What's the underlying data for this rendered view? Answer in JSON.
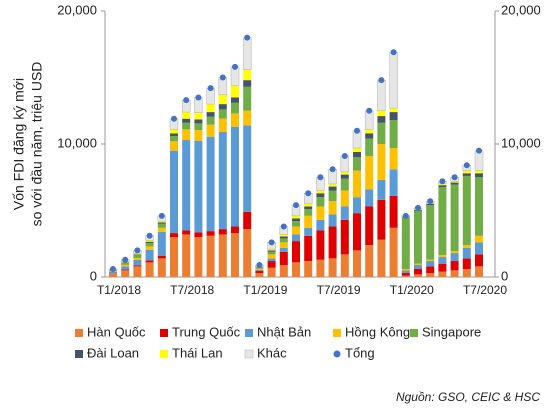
{
  "chart_data": {
    "type": "bar",
    "stacked": true,
    "y_label": [
      "Vốn FDI đăng ký mới",
      "so với đầu năm, triệu USD"
    ],
    "source": "Nguồn: GSO, CEIC & HSC",
    "categories": [
      "T1/2018",
      null,
      null,
      null,
      null,
      null,
      "T7/2018",
      null,
      null,
      null,
      null,
      null,
      "T1/2019",
      null,
      null,
      null,
      null,
      null,
      "T7/2019",
      null,
      null,
      null,
      null,
      null,
      "T1/2020",
      null,
      null,
      null,
      null,
      null,
      "T7/2020"
    ],
    "ylim": [
      0,
      20000
    ],
    "yticks": [
      0,
      {
        "value": 10000,
        "label": "10,000"
      },
      {
        "value": 20000,
        "label": "20,000"
      }
    ],
    "y2lim": [
      0,
      20000
    ],
    "y2ticks": [
      0,
      {
        "value": 10000,
        "label": "10,000"
      },
      {
        "value": 20000,
        "label": "20,000"
      }
    ],
    "series": [
      {
        "name": "Hàn Quốc",
        "color": "#ed7d31",
        "values": [
          250,
          500,
          800,
          1100,
          1400,
          3000,
          3200,
          3000,
          3100,
          3200,
          3300,
          3600,
          300,
          700,
          900,
          1100,
          1200,
          1300,
          1400,
          1700,
          2000,
          2400,
          2800,
          3700,
          100,
          200,
          300,
          400,
          500,
          600,
          800
        ]
      },
      {
        "name": "Trung Quốc",
        "color": "#e00000",
        "values": [
          30,
          60,
          80,
          150,
          200,
          300,
          300,
          350,
          350,
          400,
          500,
          1300,
          150,
          500,
          1000,
          1600,
          1900,
          2200,
          2400,
          2600,
          2800,
          2900,
          3000,
          2400,
          200,
          400,
          500,
          600,
          700,
          800,
          900
        ]
      },
      {
        "name": "Nhật Bản",
        "color": "#5b9bd5",
        "values": [
          100,
          250,
          400,
          800,
          1800,
          6200,
          6800,
          6900,
          7100,
          7300,
          7500,
          6500,
          100,
          200,
          300,
          500,
          600,
          800,
          900,
          1000,
          1200,
          1300,
          1500,
          2000,
          200,
          300,
          400,
          500,
          600,
          800,
          900
        ]
      },
      {
        "name": "Hồng Kông",
        "color": "#ffc000",
        "values": [
          50,
          100,
          150,
          250,
          300,
          700,
          800,
          800,
          900,
          1000,
          1000,
          1100,
          80,
          300,
          400,
          600,
          900,
          1000,
          1000,
          1200,
          2000,
          2500,
          2700,
          1600,
          100,
          100,
          100,
          150,
          150,
          200,
          500
        ]
      },
      {
        "name": "Singapore",
        "color": "#70ad47",
        "values": [
          60,
          150,
          200,
          250,
          300,
          400,
          500,
          500,
          600,
          700,
          800,
          1800,
          70,
          200,
          300,
          400,
          500,
          700,
          800,
          900,
          1000,
          1300,
          1600,
          2100,
          3900,
          4000,
          4100,
          5100,
          5000,
          5200,
          4400
        ]
      },
      {
        "name": "Đài Loan",
        "color": "#44546a",
        "values": [
          20,
          40,
          60,
          100,
          100,
          200,
          300,
          300,
          350,
          400,
          400,
          500,
          40,
          100,
          150,
          200,
          200,
          300,
          300,
          300,
          400,
          400,
          500,
          600,
          30,
          50,
          100,
          150,
          150,
          200,
          300
        ]
      },
      {
        "name": "Thái Lan",
        "color": "#ffff00",
        "values": [
          20,
          50,
          80,
          100,
          100,
          300,
          500,
          500,
          600,
          700,
          900,
          800,
          30,
          100,
          150,
          200,
          200,
          200,
          200,
          200,
          300,
          300,
          400,
          300,
          20,
          50,
          50,
          100,
          100,
          200,
          200
        ]
      },
      {
        "name": "Khác",
        "color": "#e7e6e6",
        "values": [
          70,
          150,
          230,
          350,
          400,
          800,
          900,
          1150,
          1200,
          1300,
          1400,
          2400,
          130,
          500,
          600,
          800,
          800,
          1000,
          1100,
          1200,
          1300,
          1400,
          2300,
          4200,
          50,
          100,
          150,
          200,
          300,
          400,
          1500
        ]
      }
    ],
    "total": {
      "name": "Tổng",
      "color": "#4472c4",
      "values": [
        600,
        1300,
        2000,
        3100,
        4600,
        11900,
        13300,
        13500,
        14200,
        15000,
        15800,
        18000,
        900,
        2600,
        3800,
        5400,
        6300,
        7500,
        8100,
        9100,
        11000,
        12500,
        14800,
        16900,
        4600,
        5200,
        5700,
        7200,
        7500,
        8400,
        9500
      ]
    },
    "legend_position": "bottom"
  }
}
